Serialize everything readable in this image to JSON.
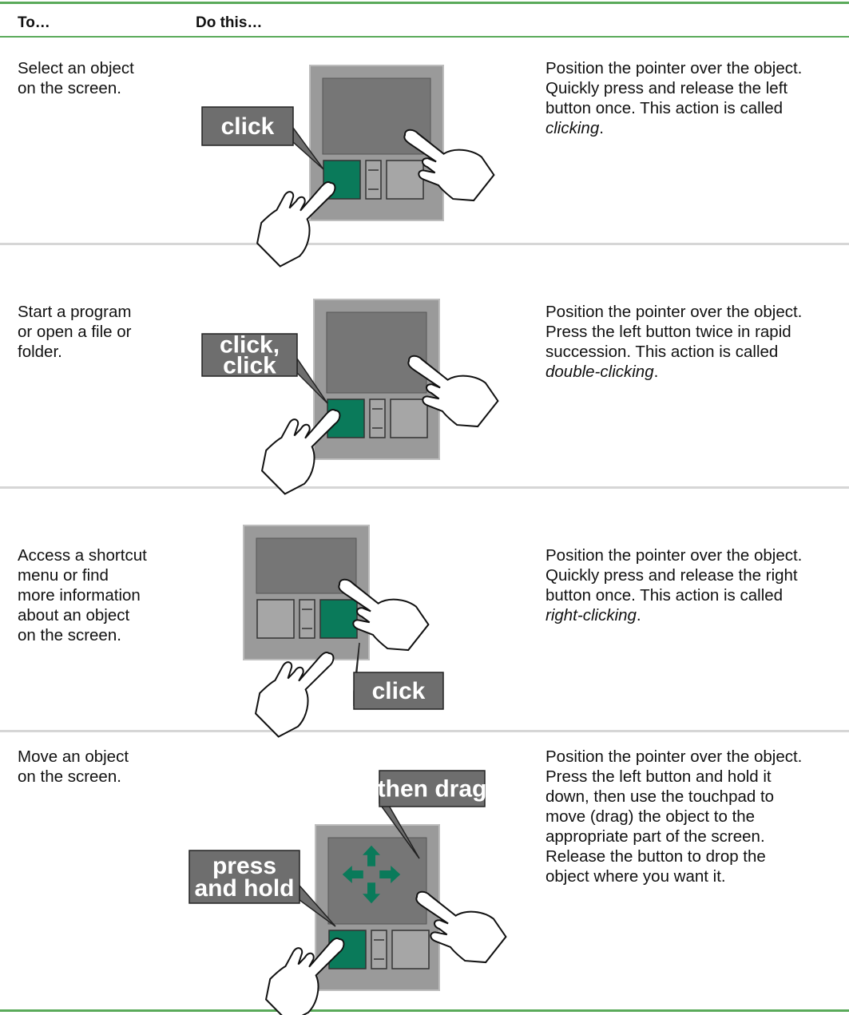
{
  "header": {
    "col1": "To…",
    "col2": "Do this…"
  },
  "rows": [
    {
      "task": [
        "Select an object",
        "on the screen."
      ],
      "labels": [
        {
          "lines": [
            "click"
          ]
        }
      ],
      "description": {
        "lines": [
          "Position the pointer over the object.",
          "Quickly press and release the left",
          "button once. This action is called"
        ],
        "term": "clicking",
        "end": "."
      }
    },
    {
      "task": [
        "Start a program",
        "or open a file or",
        "folder."
      ],
      "labels": [
        {
          "lines": [
            "click,",
            "click"
          ]
        }
      ],
      "description": {
        "lines": [
          "Position the pointer over the object.",
          "Press the left button twice in rapid",
          "succession. This action is called"
        ],
        "term": "double-clicking",
        "end": "."
      }
    },
    {
      "task": [
        "Access a shortcut",
        "menu or find",
        "more information",
        "about an object",
        "on the screen."
      ],
      "labels": [
        {
          "lines": [
            "click"
          ]
        }
      ],
      "description": {
        "lines": [
          "Position the pointer over the object.",
          "Quickly press and release the right",
          "button once. This action is called"
        ],
        "term": "right-clicking",
        "end": "."
      }
    },
    {
      "task": [
        "Move an object",
        "on the screen."
      ],
      "labels": [
        {
          "lines": [
            "then drag"
          ]
        },
        {
          "lines": [
            "press",
            "and hold"
          ]
        }
      ],
      "description": {
        "lines": [
          "Position the pointer over the object.",
          "Press the left button and hold it",
          "down, then use the touchpad to",
          "move (drag) the object to the",
          "appropriate part of the screen.",
          "Release the button to drop the",
          "object where you want it."
        ]
      }
    }
  ]
}
